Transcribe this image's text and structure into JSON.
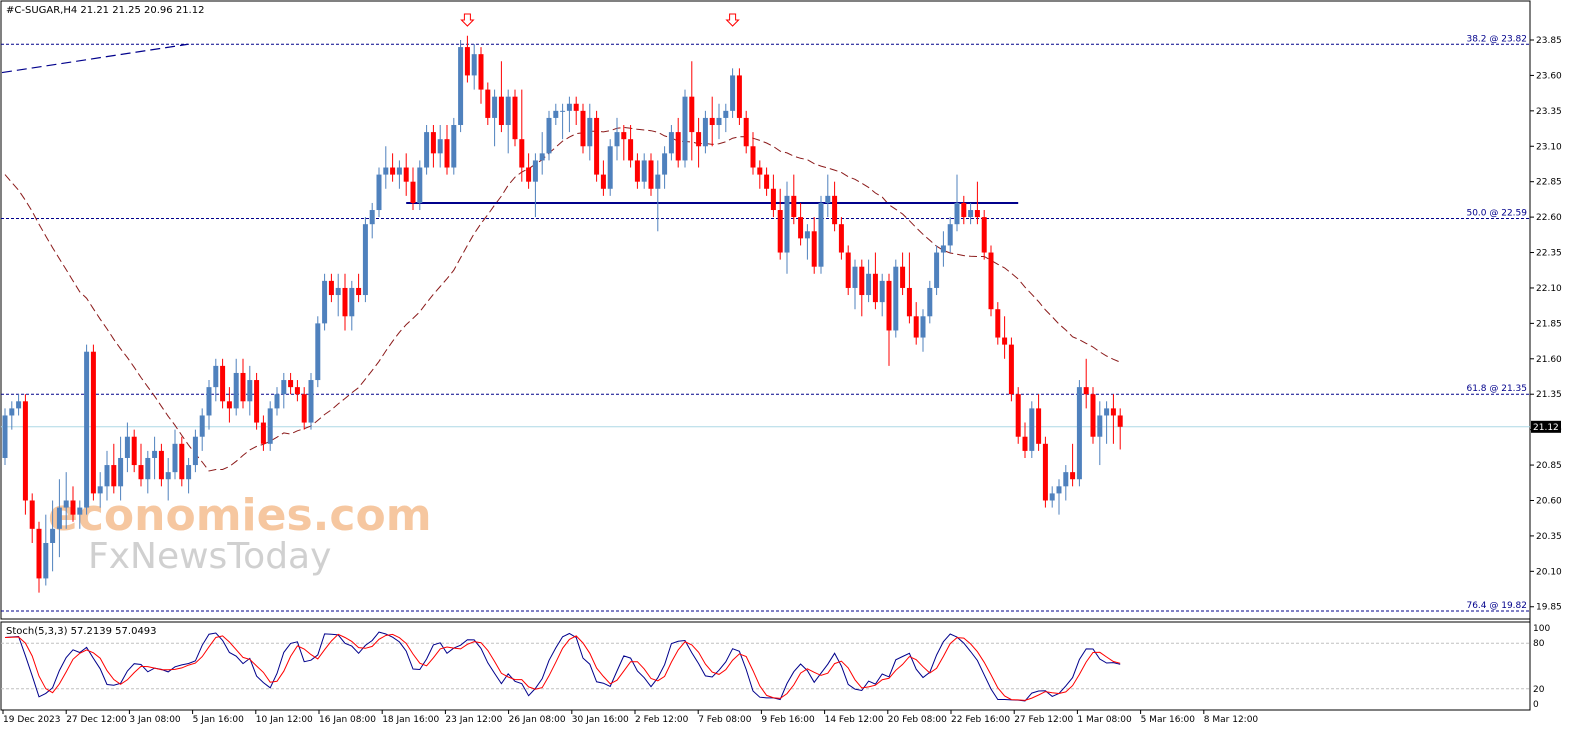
{
  "header": {
    "symbol_info": "#C-SUGAR,H4  21.21 21.25 20.96 21.12"
  },
  "stoch_header": "Stoch(5,3,3) 57.2139 57.0493",
  "watermark": {
    "line1": "economies.com",
    "line2": "FxNewsToday"
  },
  "colors": {
    "bull": "#4f81bd",
    "bear": "#ff0000",
    "ma": "#8b1a1a",
    "hline": "#00008b",
    "support": "#00008b",
    "price_line": "#add8e6",
    "stoch_main": "#00008b",
    "stoch_signal": "#ff0000",
    "grid": "#c0c0c0"
  },
  "chart_data": [
    {
      "type": "candlestick",
      "title": "#C-SUGAR,H4",
      "ylim": [
        19.8,
        23.95
      ],
      "y_ticks": [
        "23.85",
        "23.60",
        "23.35",
        "23.10",
        "22.85",
        "22.60",
        "22.35",
        "22.10",
        "21.85",
        "21.60",
        "21.35",
        "21.10",
        "20.85",
        "20.60",
        "20.35",
        "20.10",
        "19.85"
      ],
      "x_ticks": [
        "19 Dec 2023",
        "27 Dec 12:00",
        "3 Jan 08:00",
        "5 Jan 16:00",
        "10 Jan 12:00",
        "16 Jan 08:00",
        "18 Jan 16:00",
        "23 Jan 12:00",
        "26 Jan 08:00",
        "30 Jan 16:00",
        "2 Feb 12:00",
        "7 Feb 08:00",
        "9 Feb 16:00",
        "14 Feb 12:00",
        "20 Feb 08:00",
        "22 Feb 16:00",
        "27 Feb 12:00",
        "1 Mar 08:00",
        "5 Mar 16:00",
        "8 Mar 12:00"
      ],
      "current_price": "21.12",
      "fib_levels": [
        {
          "label": "38.2 @ 23.82",
          "value": 23.82
        },
        {
          "label": "50.0 @ 22.59",
          "value": 22.59
        },
        {
          "label": "61.8 @ 21.35",
          "value": 21.35
        },
        {
          "label": "76.4 @ 19.82",
          "value": 19.82
        }
      ],
      "support_line": {
        "value": 22.7,
        "from_bar": 59,
        "to_bar": 149
      },
      "down_arrows": [
        {
          "bar": 68,
          "price": 23.88
        },
        {
          "bar": 107,
          "price": 23.88
        }
      ],
      "candles": [
        [
          20.9,
          21.25,
          20.85,
          21.2
        ],
        [
          21.2,
          21.3,
          21.1,
          21.25
        ],
        [
          21.25,
          21.35,
          21.2,
          21.3
        ],
        [
          21.3,
          21.35,
          20.5,
          20.6
        ],
        [
          20.6,
          20.65,
          20.3,
          20.4
        ],
        [
          20.4,
          20.45,
          19.95,
          20.05
        ],
        [
          20.05,
          20.5,
          20.0,
          20.3
        ],
        [
          20.3,
          20.6,
          20.1,
          20.4
        ],
        [
          20.4,
          20.75,
          20.2,
          20.55
        ],
        [
          20.55,
          20.8,
          20.4,
          20.6
        ],
        [
          20.6,
          20.7,
          20.45,
          20.5
        ],
        [
          20.5,
          20.6,
          20.4,
          20.55
        ],
        [
          20.55,
          21.7,
          20.5,
          21.65
        ],
        [
          21.65,
          21.7,
          20.6,
          20.65
        ],
        [
          20.65,
          20.8,
          20.55,
          20.7
        ],
        [
          20.7,
          20.95,
          20.6,
          20.85
        ],
        [
          20.85,
          21.0,
          20.65,
          20.7
        ],
        [
          20.7,
          21.05,
          20.6,
          20.9
        ],
        [
          20.9,
          21.15,
          20.8,
          21.05
        ],
        [
          21.05,
          21.1,
          20.8,
          20.85
        ],
        [
          20.85,
          21.0,
          20.7,
          20.75
        ],
        [
          20.75,
          20.95,
          20.65,
          20.9
        ],
        [
          20.9,
          21.05,
          20.75,
          20.95
        ],
        [
          20.95,
          21.0,
          20.7,
          20.75
        ],
        [
          20.75,
          20.9,
          20.6,
          20.8
        ],
        [
          20.8,
          21.1,
          20.75,
          21.0
        ],
        [
          21.0,
          21.05,
          20.7,
          20.75
        ],
        [
          20.75,
          20.9,
          20.65,
          20.85
        ],
        [
          20.85,
          21.1,
          20.8,
          21.05
        ],
        [
          21.05,
          21.25,
          20.95,
          21.2
        ],
        [
          21.2,
          21.45,
          21.1,
          21.4
        ],
        [
          21.4,
          21.6,
          21.3,
          21.55
        ],
        [
          21.55,
          21.6,
          21.25,
          21.3
        ],
        [
          21.3,
          21.4,
          21.15,
          21.25
        ],
        [
          21.25,
          21.6,
          21.2,
          21.5
        ],
        [
          21.5,
          21.6,
          21.25,
          21.3
        ],
        [
          21.3,
          21.55,
          21.2,
          21.45
        ],
        [
          21.45,
          21.5,
          21.1,
          21.15
        ],
        [
          21.15,
          21.2,
          20.95,
          21.0
        ],
        [
          21.0,
          21.3,
          20.95,
          21.25
        ],
        [
          21.25,
          21.4,
          21.2,
          21.35
        ],
        [
          21.35,
          21.5,
          21.25,
          21.45
        ],
        [
          21.45,
          21.5,
          21.35,
          21.4
        ],
        [
          21.4,
          21.45,
          21.3,
          21.35
        ],
        [
          21.35,
          21.4,
          21.1,
          21.15
        ],
        [
          21.15,
          21.5,
          21.1,
          21.45
        ],
        [
          21.45,
          21.9,
          21.4,
          21.85
        ],
        [
          21.85,
          22.2,
          21.8,
          22.15
        ],
        [
          22.15,
          22.2,
          22.0,
          22.05
        ],
        [
          22.05,
          22.2,
          21.9,
          22.1
        ],
        [
          22.1,
          22.2,
          21.8,
          21.9
        ],
        [
          21.9,
          22.15,
          21.8,
          22.1
        ],
        [
          22.1,
          22.2,
          22.0,
          22.05
        ],
        [
          22.05,
          22.6,
          22.0,
          22.55
        ],
        [
          22.55,
          22.7,
          22.45,
          22.65
        ],
        [
          22.65,
          22.95,
          22.6,
          22.9
        ],
        [
          22.9,
          23.1,
          22.8,
          22.95
        ],
        [
          22.95,
          23.05,
          22.85,
          22.9
        ],
        [
          22.9,
          23.0,
          22.8,
          22.95
        ],
        [
          22.95,
          23.05,
          22.75,
          22.85
        ],
        [
          22.85,
          22.95,
          22.65,
          22.7
        ],
        [
          22.7,
          23.0,
          22.65,
          22.95
        ],
        [
          22.95,
          23.25,
          22.9,
          23.2
        ],
        [
          23.2,
          23.25,
          22.95,
          23.05
        ],
        [
          23.05,
          23.25,
          22.95,
          23.15
        ],
        [
          23.15,
          23.25,
          22.9,
          22.95
        ],
        [
          22.95,
          23.3,
          22.9,
          23.25
        ],
        [
          23.25,
          23.85,
          23.2,
          23.8
        ],
        [
          23.8,
          23.88,
          23.55,
          23.6
        ],
        [
          23.6,
          23.82,
          23.5,
          23.75
        ],
        [
          23.75,
          23.8,
          23.4,
          23.5
        ],
        [
          23.5,
          23.55,
          23.25,
          23.3
        ],
        [
          23.3,
          23.5,
          23.1,
          23.45
        ],
        [
          23.45,
          23.7,
          23.2,
          23.25
        ],
        [
          23.25,
          23.5,
          23.05,
          23.45
        ],
        [
          23.45,
          23.5,
          23.1,
          23.15
        ],
        [
          23.15,
          23.5,
          22.85,
          22.95
        ],
        [
          22.95,
          23.05,
          22.8,
          22.85
        ],
        [
          22.85,
          23.05,
          22.6,
          23.0
        ],
        [
          23.0,
          23.2,
          22.9,
          23.05
        ],
        [
          23.05,
          23.35,
          23.0,
          23.3
        ],
        [
          23.3,
          23.4,
          23.25,
          23.35
        ],
        [
          23.35,
          23.4,
          23.15,
          23.35
        ],
        [
          23.35,
          23.45,
          23.2,
          23.4
        ],
        [
          23.4,
          23.45,
          23.25,
          23.35
        ],
        [
          23.35,
          23.4,
          23.05,
          23.1
        ],
        [
          23.1,
          23.4,
          23.0,
          23.3
        ],
        [
          23.3,
          23.35,
          22.85,
          22.9
        ],
        [
          22.9,
          23.0,
          22.75,
          22.8
        ],
        [
          22.8,
          23.15,
          22.75,
          23.1
        ],
        [
          23.1,
          23.3,
          23.0,
          23.2
        ],
        [
          23.2,
          23.25,
          23.0,
          23.15
        ],
        [
          23.15,
          23.25,
          22.95,
          23.0
        ],
        [
          23.0,
          23.05,
          22.8,
          22.85
        ],
        [
          22.85,
          23.05,
          22.8,
          23.0
        ],
        [
          23.0,
          23.05,
          22.75,
          22.8
        ],
        [
          22.8,
          23.0,
          22.5,
          22.9
        ],
        [
          22.9,
          23.1,
          22.8,
          23.05
        ],
        [
          23.05,
          23.25,
          23.0,
          23.2
        ],
        [
          23.2,
          23.3,
          22.95,
          23.0
        ],
        [
          23.0,
          23.5,
          22.95,
          23.45
        ],
        [
          23.45,
          23.7,
          23.0,
          23.2
        ],
        [
          23.2,
          23.3,
          22.95,
          23.1
        ],
        [
          23.1,
          23.35,
          23.05,
          23.3
        ],
        [
          23.3,
          23.45,
          23.1,
          23.25
        ],
        [
          23.25,
          23.4,
          23.15,
          23.3
        ],
        [
          23.3,
          23.4,
          23.2,
          23.35
        ],
        [
          23.35,
          23.65,
          23.3,
          23.6
        ],
        [
          23.6,
          23.65,
          23.25,
          23.3
        ],
        [
          23.3,
          23.35,
          23.05,
          23.1
        ],
        [
          23.1,
          23.2,
          22.9,
          22.95
        ],
        [
          22.95,
          23.0,
          22.8,
          22.9
        ],
        [
          22.9,
          22.95,
          22.75,
          22.8
        ],
        [
          22.8,
          22.9,
          22.6,
          22.65
        ],
        [
          22.65,
          22.8,
          22.3,
          22.35
        ],
        [
          22.35,
          22.85,
          22.2,
          22.75
        ],
        [
          22.75,
          22.9,
          22.55,
          22.6
        ],
        [
          22.6,
          22.7,
          22.4,
          22.45
        ],
        [
          22.45,
          22.55,
          22.3,
          22.5
        ],
        [
          22.5,
          22.6,
          22.2,
          22.25
        ],
        [
          22.25,
          22.75,
          22.2,
          22.7
        ],
        [
          22.7,
          22.9,
          22.6,
          22.75
        ],
        [
          22.75,
          22.85,
          22.5,
          22.55
        ],
        [
          22.55,
          22.6,
          22.3,
          22.35
        ],
        [
          22.35,
          22.4,
          22.05,
          22.1
        ],
        [
          22.1,
          22.3,
          21.95,
          22.25
        ],
        [
          22.25,
          22.3,
          21.9,
          22.05
        ],
        [
          22.05,
          22.3,
          22.0,
          22.2
        ],
        [
          22.2,
          22.35,
          21.95,
          22.0
        ],
        [
          22.0,
          22.2,
          21.9,
          22.15
        ],
        [
          22.15,
          22.2,
          21.55,
          21.8
        ],
        [
          21.8,
          22.3,
          21.75,
          22.25
        ],
        [
          22.25,
          22.35,
          22.05,
          22.1
        ],
        [
          22.1,
          22.35,
          21.85,
          21.9
        ],
        [
          21.9,
          22.0,
          21.7,
          21.75
        ],
        [
          21.75,
          21.95,
          21.65,
          21.9
        ],
        [
          21.9,
          22.15,
          21.85,
          22.1
        ],
        [
          22.1,
          22.4,
          22.05,
          22.35
        ],
        [
          22.35,
          22.5,
          22.25,
          22.4
        ],
        [
          22.4,
          22.6,
          22.35,
          22.55
        ],
        [
          22.55,
          22.9,
          22.5,
          22.7
        ],
        [
          22.7,
          22.75,
          22.55,
          22.6
        ],
        [
          22.6,
          22.7,
          22.55,
          22.65
        ],
        [
          22.65,
          22.85,
          22.55,
          22.6
        ],
        [
          22.6,
          22.65,
          22.3,
          22.35
        ],
        [
          22.35,
          22.4,
          21.9,
          21.95
        ],
        [
          21.95,
          22.0,
          21.7,
          21.75
        ],
        [
          21.75,
          21.9,
          21.6,
          21.7
        ],
        [
          21.7,
          21.75,
          21.3,
          21.35
        ],
        [
          21.35,
          21.4,
          21.0,
          21.05
        ],
        [
          21.05,
          21.15,
          20.9,
          20.95
        ],
        [
          20.95,
          21.3,
          20.9,
          21.25
        ],
        [
          21.25,
          21.35,
          20.95,
          21.0
        ],
        [
          21.0,
          21.05,
          20.55,
          20.6
        ],
        [
          20.6,
          20.7,
          20.55,
          20.65
        ],
        [
          20.65,
          20.75,
          20.5,
          20.7
        ],
        [
          20.7,
          20.85,
          20.6,
          20.8
        ],
        [
          20.8,
          21.0,
          20.7,
          20.75
        ],
        [
          20.75,
          21.45,
          20.7,
          21.4
        ],
        [
          21.4,
          21.6,
          21.25,
          21.35
        ],
        [
          21.35,
          21.4,
          21.0,
          21.05
        ],
        [
          21.05,
          21.3,
          20.85,
          21.2
        ],
        [
          21.2,
          21.3,
          21.0,
          21.25
        ],
        [
          21.25,
          21.35,
          21.0,
          21.2
        ],
        [
          21.2,
          21.25,
          20.96,
          21.12
        ]
      ],
      "ma_note": "dashed moving average"
    },
    {
      "type": "line",
      "title": "Stoch(5,3,3) 57.2139 57.0493",
      "ylim": [
        0,
        100
      ],
      "y_ticks": [
        "100",
        "80",
        "20",
        "0"
      ],
      "levels": [
        80,
        20
      ],
      "series": []
    }
  ]
}
